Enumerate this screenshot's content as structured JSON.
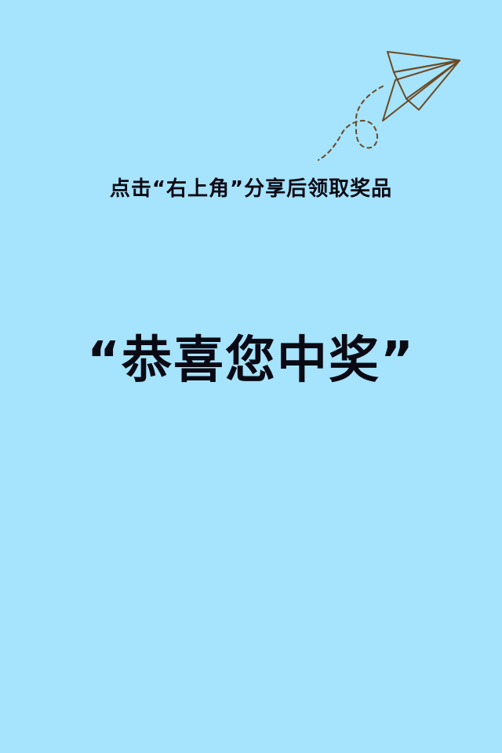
{
  "colors": {
    "background": "#a6e3fc",
    "text": "#0a0a14",
    "plane_stroke": "#6b4a23"
  },
  "decoration": {
    "icon": "paper-plane-icon"
  },
  "instruction_text": "点击“右上角”分享后领取奖品",
  "headline_text": "“恭喜您中奖”"
}
